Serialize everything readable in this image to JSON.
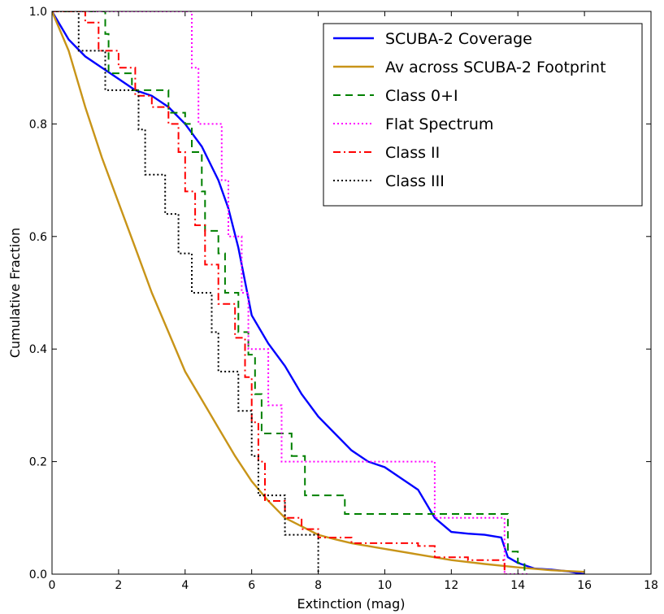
{
  "chart_data": {
    "type": "line",
    "xlabel": "Extinction (mag)",
    "ylabel": "Cumulative Fraction",
    "xlim": [
      0,
      18
    ],
    "ylim": [
      0,
      1.0
    ],
    "xticks": [
      0,
      2,
      4,
      6,
      8,
      10,
      12,
      14,
      16,
      18
    ],
    "yticks": [
      0.0,
      0.2,
      0.4,
      0.6,
      0.8,
      1.0
    ],
    "xtick_labels": [
      "0",
      "2",
      "4",
      "6",
      "8",
      "10",
      "12",
      "14",
      "16",
      "18"
    ],
    "ytick_labels": [
      "0.0",
      "0.2",
      "0.4",
      "0.6",
      "0.8",
      "1.0"
    ],
    "grid": false,
    "legend_position": "top-right",
    "series": [
      {
        "name": "SCUBA-2 Coverage",
        "color": "#0000ff",
        "style": "solid",
        "x": [
          0,
          0.5,
          1.0,
          1.5,
          2.0,
          2.5,
          3.0,
          3.5,
          4.0,
          4.5,
          5.0,
          5.3,
          5.6,
          6.0,
          6.5,
          7.0,
          7.5,
          8.0,
          8.5,
          9.0,
          9.5,
          10.0,
          10.5,
          11.0,
          11.5,
          12.0,
          12.5,
          13.0,
          13.5,
          13.7,
          14.0,
          14.5,
          15.0,
          15.5,
          16.0
        ],
        "y": [
          1.0,
          0.95,
          0.92,
          0.9,
          0.88,
          0.86,
          0.85,
          0.83,
          0.8,
          0.76,
          0.7,
          0.65,
          0.58,
          0.46,
          0.41,
          0.37,
          0.32,
          0.28,
          0.25,
          0.22,
          0.2,
          0.19,
          0.17,
          0.15,
          0.1,
          0.075,
          0.072,
          0.07,
          0.065,
          0.03,
          0.02,
          0.01,
          0.008,
          0.005,
          0.0
        ]
      },
      {
        "name": "Av across SCUBA-2 Footprint",
        "color": "#c89418",
        "style": "solid",
        "x": [
          0,
          0.5,
          1.0,
          1.5,
          2.0,
          2.5,
          3.0,
          3.5,
          4.0,
          4.5,
          5.0,
          5.5,
          6.0,
          6.5,
          7.0,
          7.5,
          8.0,
          8.5,
          9.0,
          9.5,
          10.0,
          11.0,
          12.0,
          13.0,
          14.0,
          15.0,
          16.0
        ],
        "y": [
          1.0,
          0.93,
          0.83,
          0.74,
          0.66,
          0.58,
          0.5,
          0.43,
          0.36,
          0.31,
          0.26,
          0.21,
          0.165,
          0.13,
          0.1,
          0.085,
          0.07,
          0.062,
          0.055,
          0.05,
          0.045,
          0.035,
          0.025,
          0.018,
          0.012,
          0.007,
          0.004
        ]
      },
      {
        "name": "Class 0+I",
        "color": "#008000",
        "style": "dashed",
        "step": true,
        "x": [
          0,
          1.6,
          1.7,
          2.4,
          2.6,
          3.3,
          3.5,
          4.0,
          4.2,
          4.5,
          4.6,
          5.0,
          5.2,
          5.6,
          5.9,
          6.1,
          6.3,
          7.2,
          7.6,
          8.8,
          13.7,
          14.0,
          14.2
        ],
        "y": [
          1.0,
          0.96,
          0.89,
          0.86,
          0.86,
          0.86,
          0.82,
          0.8,
          0.75,
          0.68,
          0.61,
          0.57,
          0.5,
          0.43,
          0.39,
          0.32,
          0.25,
          0.21,
          0.14,
          0.107,
          0.04,
          0.02,
          0.0
        ]
      },
      {
        "name": "Flat Spectrum",
        "color": "#ff00ff",
        "style": "dotted",
        "step": true,
        "x": [
          0,
          4.2,
          4.4,
          5.1,
          5.3,
          5.7,
          5.9,
          6.5,
          6.9,
          11.5,
          13.6,
          14.3
        ],
        "y": [
          1.0,
          0.9,
          0.8,
          0.7,
          0.6,
          0.5,
          0.4,
          0.3,
          0.2,
          0.1,
          0.0,
          0.0
        ]
      },
      {
        "name": "Class II",
        "color": "#ff0000",
        "style": "dashdot",
        "step": true,
        "x": [
          0,
          1.0,
          1.4,
          2.0,
          2.5,
          3.0,
          3.5,
          3.8,
          4.0,
          4.3,
          4.6,
          5.0,
          5.5,
          5.8,
          6.0,
          6.2,
          6.4,
          7.0,
          7.5,
          8.0,
          9.0,
          11.0,
          11.5,
          12.5,
          13.6
        ],
        "y": [
          1.0,
          0.98,
          0.93,
          0.9,
          0.85,
          0.83,
          0.8,
          0.75,
          0.68,
          0.62,
          0.55,
          0.48,
          0.42,
          0.35,
          0.27,
          0.2,
          0.13,
          0.1,
          0.08,
          0.065,
          0.055,
          0.05,
          0.03,
          0.025,
          0.0
        ]
      },
      {
        "name": "Class III",
        "color": "#000000",
        "style": "dotted",
        "step": true,
        "x": [
          0,
          0.8,
          1.6,
          2.6,
          2.8,
          3.4,
          3.8,
          4.2,
          4.8,
          5.0,
          5.6,
          6.0,
          6.2,
          7.0,
          8.0
        ],
        "y": [
          1.0,
          0.93,
          0.86,
          0.79,
          0.71,
          0.64,
          0.57,
          0.5,
          0.43,
          0.36,
          0.29,
          0.21,
          0.14,
          0.07,
          0.0
        ]
      }
    ]
  }
}
